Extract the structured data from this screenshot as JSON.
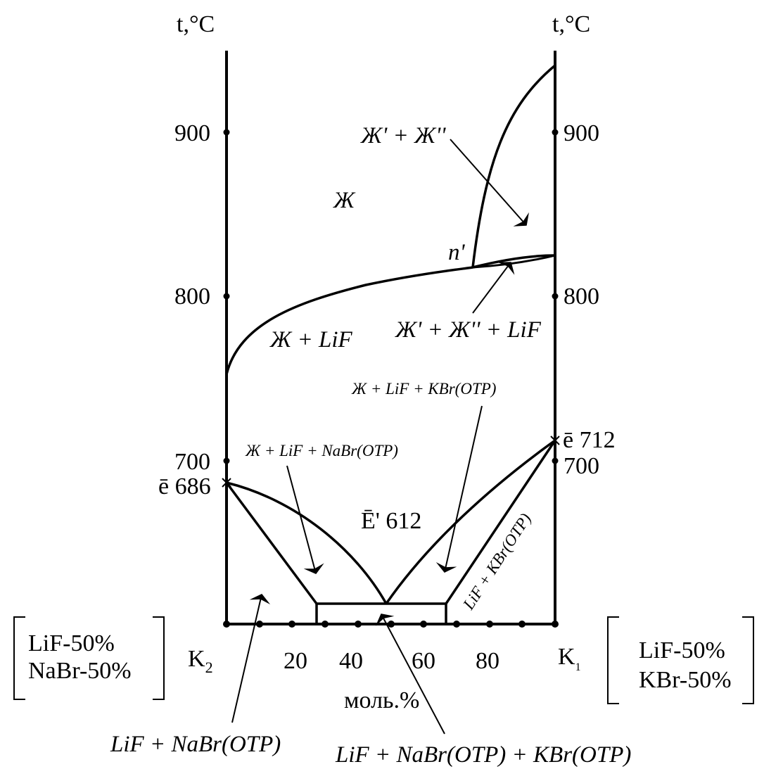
{
  "axis": {
    "t_left": "t,°C",
    "t_right": "t,°C",
    "ticks_left": [
      "900",
      "800",
      "700"
    ],
    "ticks_right": [
      "900",
      "800",
      "700"
    ],
    "x_ticks": [
      "20",
      "40",
      "60",
      "80"
    ],
    "x_unit": "моль.%",
    "left_end": "K",
    "left_end_sub": "2",
    "right_end": "K",
    "right_end_sub": "1"
  },
  "components": {
    "left_line1": "LiF-50%",
    "left_line2": "NaBr-50%",
    "right_line1": "LiF-50%",
    "right_line2": "KBr-50%"
  },
  "points": {
    "e_left": "ē 686",
    "e_right": "ē 712",
    "E_ternary": "Ē' 612",
    "n": "n'"
  },
  "regions": {
    "liquid": "Ж",
    "liquid_liquid": "Ж' + Ж''",
    "liquid_lif": "Ж + LiF",
    "liquid_liquid_lif": "Ж' + Ж'' + LiF",
    "liquid_lif_kbr": "Ж + LiF + KBr(OTP)",
    "liquid_lif_nabr": "Ж + LiF + NaBr(OTP)",
    "lif_kbr": "LiF + KBr(OTP)",
    "lif_nabr": "LiF + NaBr(OTP)",
    "lif_nabr_kbr": "LiF + NaBr(OTP) + KBr(OTP)"
  }
}
